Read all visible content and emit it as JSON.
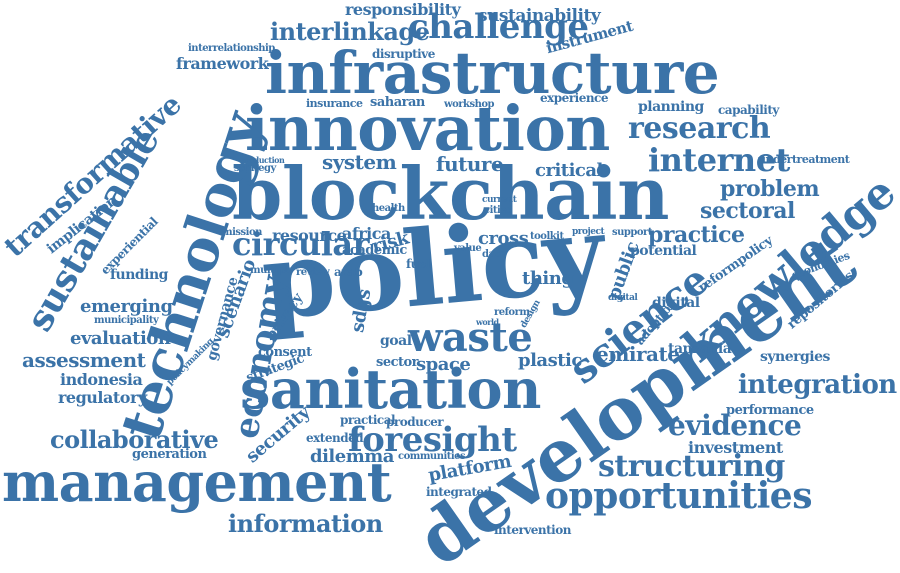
{
  "cloud": {
    "color": "#3b73a8",
    "words": [
      "policy",
      "development",
      "blockchain",
      "innovation",
      "infrastructure",
      "sanitation",
      "management",
      "technology",
      "knowledge",
      "science",
      "waste",
      "sustainable",
      "foresight",
      "challenge",
      "research",
      "economy",
      "opportunities",
      "internet",
      "circular",
      "transformative",
      "interlinkage",
      "evidence",
      "structuring",
      "integration",
      "information",
      "collaborative",
      "problem",
      "sectoral",
      "practice",
      "system",
      "future",
      "critical",
      "assessment",
      "evaluation",
      "responsibility",
      "sustainability",
      "framework",
      "instrument",
      "emerging",
      "indonesia",
      "regulatory",
      "security",
      "dilemma",
      "platform",
      "emirate",
      "scenario",
      "governance",
      "resource",
      "africa",
      "risk",
      "cross",
      "thing",
      "public",
      "digital",
      "potential",
      "tanzania",
      "space",
      "plastic",
      "sdgs",
      "privacy",
      "consent",
      "strategic",
      "goal",
      "sector",
      "investment",
      "performance",
      "synergies",
      "repositories",
      "reformpolicy",
      "economies",
      "undertreatment",
      "capability",
      "planning",
      "experience",
      "saharan",
      "insurance",
      "workshop",
      "disruptive",
      "interrelationship",
      "funding",
      "implication",
      "experiential",
      "generation",
      "producer",
      "extended",
      "communities",
      "integrated",
      "intervention",
      "practical",
      "adoption",
      "municipality",
      "policymaking",
      "mission",
      "multiple",
      "review",
      "arab",
      "fuel",
      "academic",
      "toolkit",
      "project",
      "support",
      "strategy",
      "production",
      "digital",
      "health",
      "cities",
      "current",
      "value",
      "data",
      "reform",
      "design",
      "world"
    ]
  }
}
